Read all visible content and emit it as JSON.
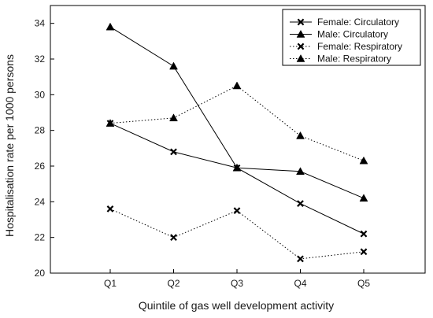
{
  "chart_data": {
    "type": "line",
    "xlabel": "Quintile of gas well development activity",
    "ylabel": "Hospitalisation rate per 1000 persons",
    "categories": [
      "Q1",
      "Q2",
      "Q3",
      "Q4",
      "Q5"
    ],
    "ylim": [
      20,
      35
    ],
    "yticks": [
      20,
      22,
      24,
      26,
      28,
      30,
      32,
      34
    ],
    "grid": false,
    "legend_position": "top-right",
    "series": [
      {
        "name": "Female: Circulatory",
        "marker": "x",
        "line": "solid",
        "color": "#000000",
        "values": [
          28.4,
          26.8,
          25.9,
          23.9,
          22.2
        ]
      },
      {
        "name": "Male: Circulatory",
        "marker": "triangle",
        "line": "solid",
        "color": "#000000",
        "values": [
          33.8,
          31.6,
          25.9,
          25.7,
          24.2
        ]
      },
      {
        "name": "Female: Respiratory",
        "marker": "x",
        "line": "dotted",
        "color": "#000000",
        "values": [
          23.6,
          22.0,
          23.5,
          20.8,
          21.2
        ]
      },
      {
        "name": "Male: Respiratory",
        "marker": "triangle",
        "line": "dotted",
        "color": "#000000",
        "values": [
          28.4,
          28.7,
          30.5,
          27.7,
          26.3
        ]
      }
    ]
  }
}
